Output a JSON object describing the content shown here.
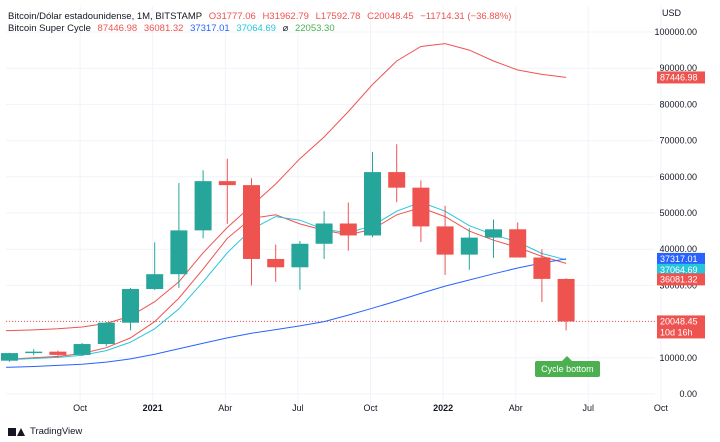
{
  "legend": {
    "symbol": "Bitcoin/Dólar estadounidense, 1M, BITSTAMP",
    "open": "O31777.06",
    "high": "H31962.79",
    "low": "L17592.78",
    "close": "C20048.45",
    "change": "−11714.31 (−36.88%)",
    "indicator_name": "Bitcoin Super Cycle",
    "ind_v1": "87446.98",
    "ind_v2": "36081.32",
    "ind_v3": "37317.01",
    "ind_v4": "37064.69",
    "ind_symbol": "⌀",
    "ind_v5": "22053.30"
  },
  "currency": "USD",
  "footer": {
    "brand": "TradingView"
  },
  "annotation": {
    "label": "Cycle bottom"
  },
  "price_tags": [
    {
      "text": "87446.98",
      "value": 87446.98,
      "color": "#ef5350"
    },
    {
      "text": "37317.01",
      "value": 37317.01,
      "color": "#2962ff"
    },
    {
      "text": "37064.69",
      "value": 37064.69,
      "color": "#26c6da"
    },
    {
      "text": "36081.32",
      "value": 36081.32,
      "color": "#ef5350"
    },
    {
      "text": "20048.45",
      "value": 20048.45,
      "color": "#ef5350"
    },
    {
      "text": "10d 16h",
      "value": 17000,
      "color": "#ef5350"
    }
  ],
  "colors": {
    "up": "#26a69a",
    "down": "#ef5350",
    "upper_band": "#ef5350",
    "long_ma": "#2962ff",
    "fast_ma": "#26c6da",
    "slow_ma": "#ef5350",
    "grid": "#f0f3fa",
    "annotation": "#4caf50"
  },
  "chart_data": {
    "type": "candlestick",
    "title": "Bitcoin/Dólar estadounidense, 1M, BITSTAMP",
    "ylim": [
      0,
      102000
    ],
    "yticks": [
      "0.00",
      "10000.00",
      "20000.00",
      "30000.00",
      "40000.00",
      "50000.00",
      "60000.00",
      "70000.00",
      "80000.00",
      "90000.00",
      "100000.00"
    ],
    "ytick_values": [
      0,
      10000,
      20000,
      30000,
      40000,
      50000,
      60000,
      70000,
      80000,
      90000,
      100000
    ],
    "xtick_labels": [
      "Oct",
      "2021",
      "Abr",
      "Jul",
      "Oct",
      "2022",
      "Abr",
      "Jul",
      "Oct"
    ],
    "xtick_index": [
      3,
      6,
      9,
      12,
      15,
      18,
      21,
      24,
      27
    ],
    "candles": [
      {
        "o": 9200,
        "h": 11400,
        "l": 8900,
        "c": 11300
      },
      {
        "o": 11300,
        "h": 12400,
        "l": 10700,
        "c": 11700
      },
      {
        "o": 11700,
        "h": 12000,
        "l": 10000,
        "c": 10800
      },
      {
        "o": 10800,
        "h": 14100,
        "l": 10500,
        "c": 13800
      },
      {
        "o": 13800,
        "h": 19900,
        "l": 13200,
        "c": 19700
      },
      {
        "o": 19700,
        "h": 29300,
        "l": 17600,
        "c": 29000
      },
      {
        "o": 29000,
        "h": 41900,
        "l": 28700,
        "c": 33100
      },
      {
        "o": 33100,
        "h": 58300,
        "l": 29300,
        "c": 45200
      },
      {
        "o": 45200,
        "h": 61800,
        "l": 43000,
        "c": 58800
      },
      {
        "o": 58800,
        "h": 65000,
        "l": 47000,
        "c": 57700
      },
      {
        "o": 57700,
        "h": 59600,
        "l": 30000,
        "c": 37300
      },
      {
        "o": 37300,
        "h": 41300,
        "l": 31000,
        "c": 35000
      },
      {
        "o": 35000,
        "h": 42300,
        "l": 28800,
        "c": 41500
      },
      {
        "o": 41500,
        "h": 50500,
        "l": 37300,
        "c": 47100
      },
      {
        "o": 47100,
        "h": 52900,
        "l": 39600,
        "c": 43800
      },
      {
        "o": 43800,
        "h": 66900,
        "l": 43300,
        "c": 61300
      },
      {
        "o": 61300,
        "h": 69000,
        "l": 53000,
        "c": 57000
      },
      {
        "o": 57000,
        "h": 59000,
        "l": 42000,
        "c": 46300
      },
      {
        "o": 46300,
        "h": 52000,
        "l": 32900,
        "c": 38500
      },
      {
        "o": 38500,
        "h": 45800,
        "l": 34300,
        "c": 43200
      },
      {
        "o": 43200,
        "h": 48200,
        "l": 37600,
        "c": 45500
      },
      {
        "o": 45500,
        "h": 47400,
        "l": 37700,
        "c": 37700
      },
      {
        "o": 37700,
        "h": 40000,
        "l": 25400,
        "c": 31800
      },
      {
        "o": 31777.06,
        "h": 31962.79,
        "l": 17592.78,
        "c": 20048.45
      }
    ],
    "series": [
      {
        "key": "upper",
        "values": [
          17500,
          17700,
          18000,
          18500,
          19500,
          21500,
          25500,
          31000,
          39000,
          46000,
          52000,
          58000,
          65000,
          71000,
          78000,
          85500,
          92000,
          96000,
          96800,
          95000,
          92000,
          89500,
          88300,
          87446.98
        ]
      },
      {
        "key": "slow",
        "values": [
          9600,
          10000,
          10400,
          11200,
          12800,
          15500,
          20000,
          26500,
          34500,
          43000,
          48500,
          49500,
          47000,
          45200,
          44000,
          45500,
          49500,
          51500,
          49000,
          45000,
          42500,
          40500,
          38000,
          36081.32
        ]
      },
      {
        "key": "fast",
        "values": [
          9500,
          9800,
          10100,
          10700,
          12000,
          14300,
          18000,
          23500,
          31000,
          39000,
          45500,
          49000,
          48000,
          45500,
          44500,
          46500,
          50500,
          53000,
          50500,
          46500,
          44000,
          42000,
          38800,
          37064.69
        ]
      },
      {
        "key": "long",
        "values": [
          7400,
          7600,
          7900,
          8200,
          8800,
          9700,
          11000,
          12500,
          14000,
          15500,
          16800,
          17800,
          18800,
          20000,
          21800,
          23700,
          25700,
          27800,
          29800,
          31500,
          33200,
          34800,
          36200,
          37317.01
        ]
      }
    ],
    "grid": true
  }
}
